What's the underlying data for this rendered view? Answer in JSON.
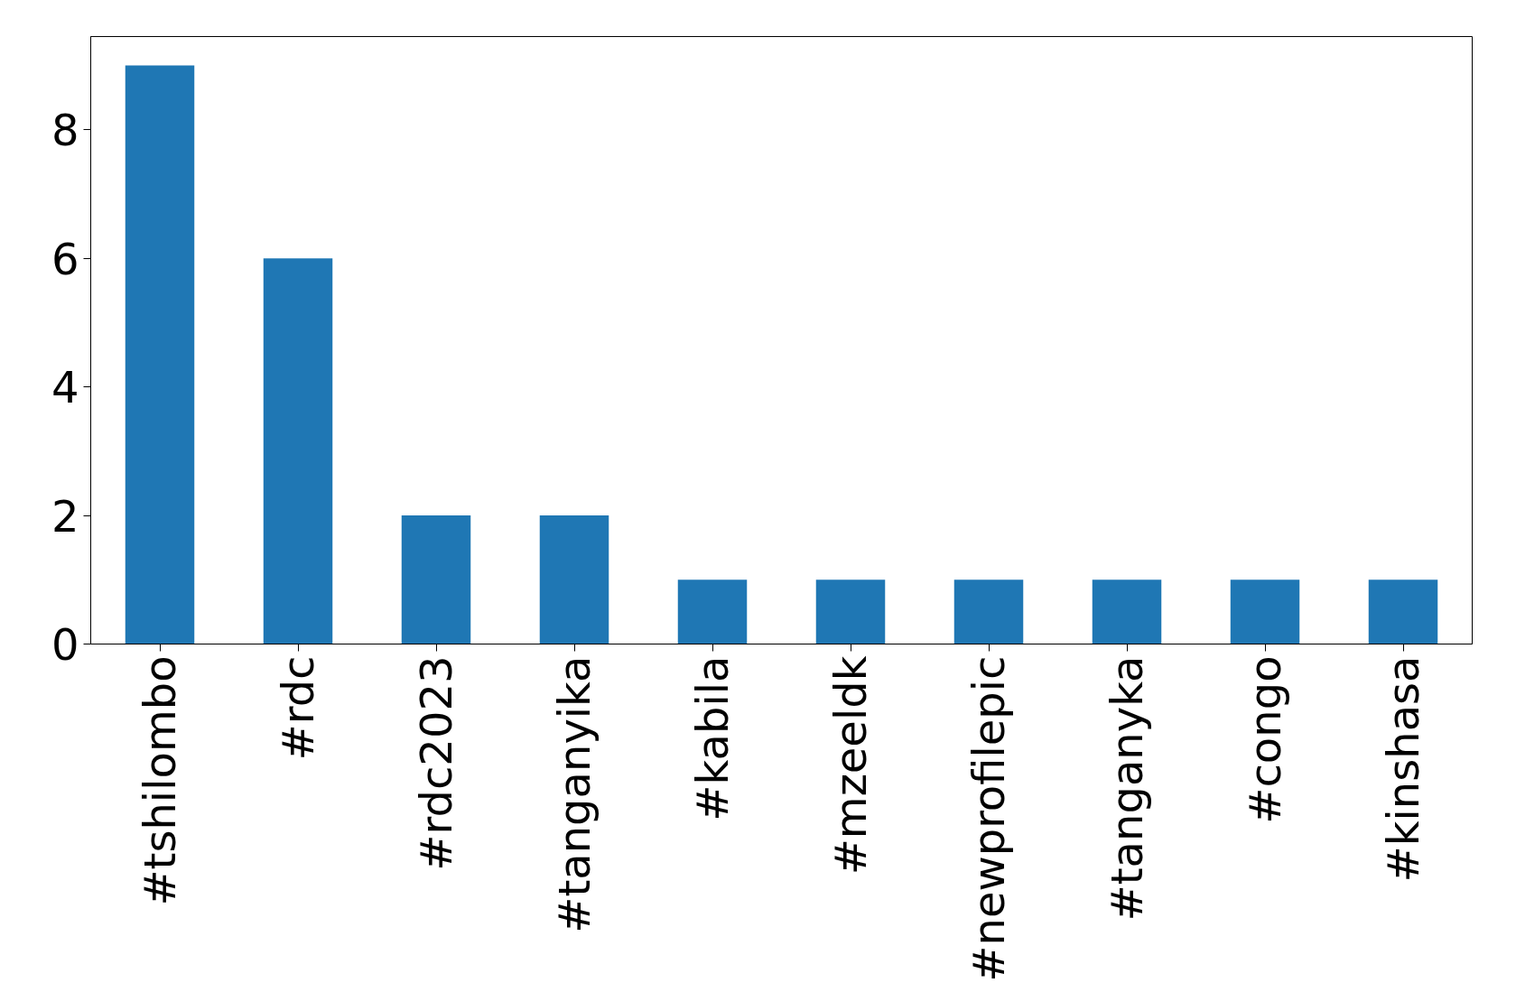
{
  "chart_data": {
    "type": "bar",
    "categories": [
      "#tshilombo",
      "#rdc",
      "#rdc2023",
      "#tanganyika",
      "#kabila",
      "#mzeeldk",
      "#newprofilepic",
      "#tanganyka",
      "#congo",
      "#kinshasa"
    ],
    "values": [
      9,
      6,
      2,
      2,
      1,
      1,
      1,
      1,
      1,
      1
    ],
    "color": "#1f77b4",
    "ylim": [
      0,
      9.45
    ],
    "yticks": [
      0,
      2,
      4,
      6,
      8
    ],
    "grid": false
  }
}
